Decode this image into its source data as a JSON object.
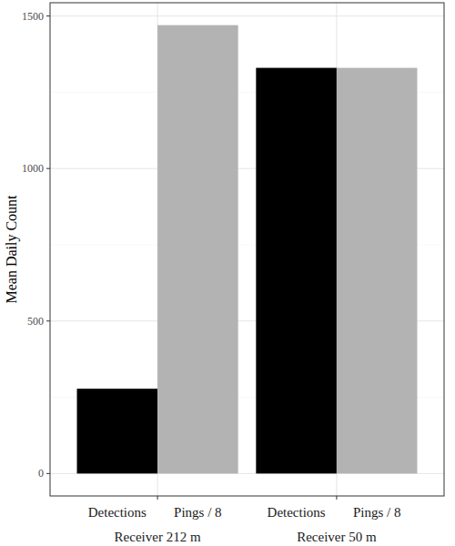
{
  "chart_data": {
    "type": "bar",
    "y_label": "Mean Daily Count",
    "categories": [
      "Receiver 212 m",
      "Receiver 50 m"
    ],
    "series": [
      {
        "name": "Detections",
        "color": "#000000",
        "values": [
          278,
          1330
        ]
      },
      {
        "name": "Pings / 8",
        "color": "#b3b3b3",
        "values": [
          1470,
          1330
        ]
      }
    ],
    "ylim": [
      -73.5,
      1543.5
    ],
    "yticks": [
      0,
      500,
      1000,
      1500
    ],
    "grid": true
  }
}
